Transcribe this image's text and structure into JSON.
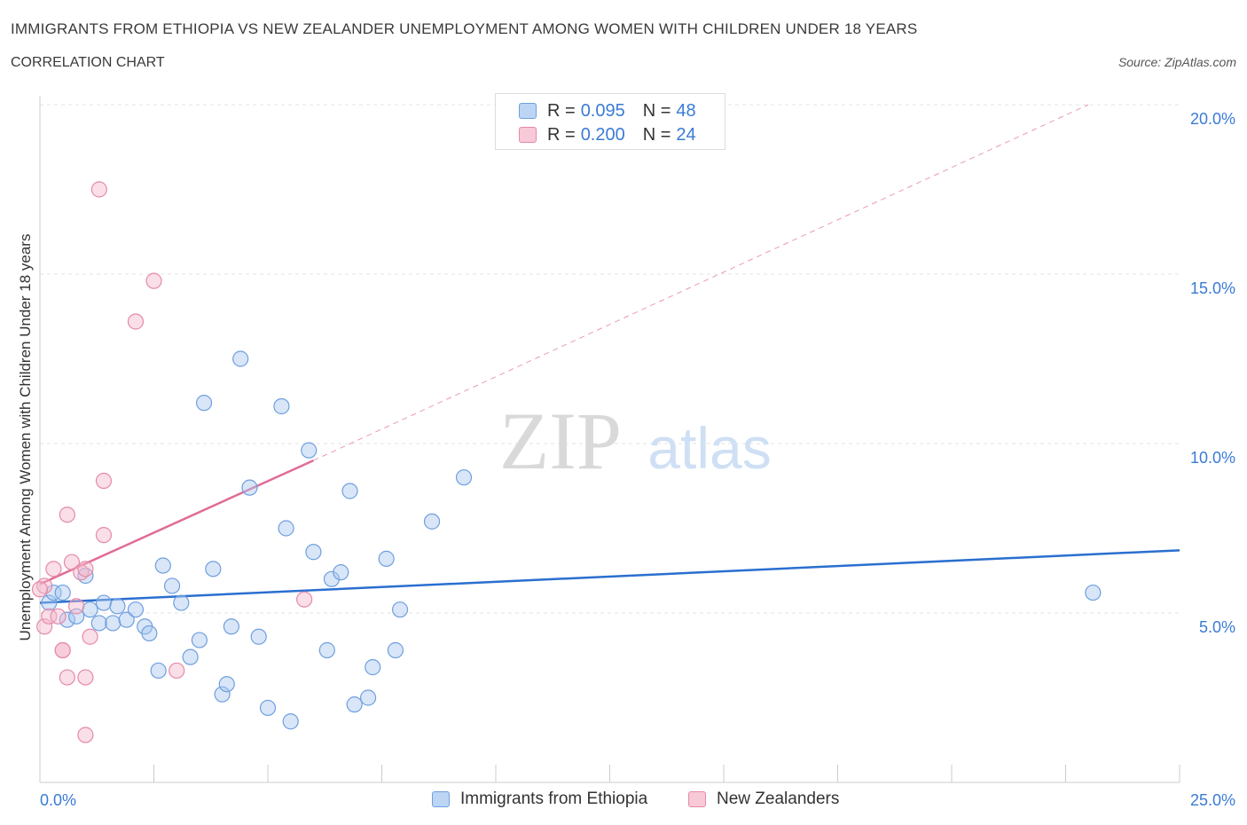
{
  "title": "IMMIGRANTS FROM ETHIOPIA VS NEW ZEALANDER UNEMPLOYMENT AMONG WOMEN WITH CHILDREN UNDER 18 YEARS",
  "subtitle": "CORRELATION CHART",
  "source": "Source: ZipAtlas.com",
  "watermark": {
    "zip": "ZIP",
    "atlas": "atlas"
  },
  "legend": {
    "series1": {
      "r_label": "R =",
      "r_value": "0.095",
      "n_label": "N =",
      "n_value": "48"
    },
    "series2": {
      "r_label": "R =",
      "r_value": "0.200",
      "n_label": "N =",
      "n_value": "24"
    }
  },
  "colors": {
    "blue_fill": "#a9c8f0",
    "blue_stroke": "#6f9fde",
    "blue_line": "#2a6fcf",
    "pink_fill": "#f5b8cb",
    "pink_stroke": "#e58aa8",
    "pink_line": "#e06c97",
    "axis_text": "#3a7bd5",
    "grid": "#e3e3e3"
  },
  "chart_data": {
    "type": "scatter",
    "xlabel": "",
    "ylabel": "Unemployment Among Women with Children Under 18 years",
    "xlim": [
      0,
      25
    ],
    "ylim": [
      0,
      20
    ],
    "x_tick_labels": [
      {
        "value": 0,
        "label": "0.0%"
      },
      {
        "value": 25,
        "label": "25.0%"
      }
    ],
    "y_tick_labels": [
      {
        "value": 5,
        "label": "5.0%"
      },
      {
        "value": 10,
        "label": "10.0%"
      },
      {
        "value": 15,
        "label": "15.0%"
      },
      {
        "value": 20,
        "label": "20.0%"
      }
    ],
    "grid": true,
    "legend_position": "bottom",
    "series": [
      {
        "name": "Immigrants from Ethiopia",
        "color": "#6f9fde",
        "points": [
          [
            0.2,
            5.3
          ],
          [
            0.3,
            5.6
          ],
          [
            0.5,
            5.6
          ],
          [
            0.6,
            4.8
          ],
          [
            0.8,
            4.9
          ],
          [
            1.0,
            6.1
          ],
          [
            1.1,
            5.1
          ],
          [
            1.3,
            4.7
          ],
          [
            1.4,
            5.3
          ],
          [
            1.6,
            4.7
          ],
          [
            1.7,
            5.2
          ],
          [
            1.9,
            4.8
          ],
          [
            2.1,
            5.1
          ],
          [
            2.3,
            4.6
          ],
          [
            2.4,
            4.4
          ],
          [
            2.6,
            3.3
          ],
          [
            2.7,
            6.4
          ],
          [
            2.9,
            5.8
          ],
          [
            3.1,
            5.3
          ],
          [
            3.3,
            3.7
          ],
          [
            3.5,
            4.2
          ],
          [
            3.6,
            11.2
          ],
          [
            3.8,
            6.3
          ],
          [
            4.0,
            2.6
          ],
          [
            4.1,
            2.9
          ],
          [
            4.2,
            4.6
          ],
          [
            4.4,
            12.5
          ],
          [
            4.6,
            8.7
          ],
          [
            4.8,
            4.3
          ],
          [
            5.0,
            2.2
          ],
          [
            5.3,
            11.1
          ],
          [
            5.4,
            7.5
          ],
          [
            5.5,
            1.8
          ],
          [
            5.9,
            9.8
          ],
          [
            6.0,
            6.8
          ],
          [
            6.3,
            3.9
          ],
          [
            6.4,
            6.0
          ],
          [
            6.6,
            6.2
          ],
          [
            6.8,
            8.6
          ],
          [
            6.9,
            2.3
          ],
          [
            7.2,
            2.5
          ],
          [
            7.3,
            3.4
          ],
          [
            7.6,
            6.6
          ],
          [
            7.8,
            3.9
          ],
          [
            7.9,
            5.1
          ],
          [
            8.6,
            7.7
          ],
          [
            9.3,
            9.0
          ],
          [
            23.1,
            5.6
          ]
        ]
      },
      {
        "name": "New Zealanders",
        "color": "#e58aa8",
        "points": [
          [
            0.1,
            5.8
          ],
          [
            0.1,
            4.6
          ],
          [
            0.2,
            4.9
          ],
          [
            0.3,
            6.3
          ],
          [
            0.4,
            4.9
          ],
          [
            0.5,
            3.9
          ],
          [
            0.5,
            3.9
          ],
          [
            0.6,
            7.9
          ],
          [
            0.6,
            3.1
          ],
          [
            0.7,
            6.5
          ],
          [
            0.8,
            5.2
          ],
          [
            0.9,
            6.2
          ],
          [
            1.0,
            6.3
          ],
          [
            1.0,
            3.1
          ],
          [
            1.0,
            1.4
          ],
          [
            1.1,
            4.3
          ],
          [
            1.3,
            17.5
          ],
          [
            1.4,
            7.3
          ],
          [
            1.4,
            8.9
          ],
          [
            2.1,
            13.6
          ],
          [
            2.5,
            14.8
          ],
          [
            3.0,
            3.3
          ],
          [
            5.8,
            5.4
          ],
          [
            0.0,
            5.7
          ]
        ]
      }
    ],
    "trend_lines": [
      {
        "series": "Immigrants from Ethiopia",
        "from": [
          0,
          5.3
        ],
        "to": [
          25,
          6.85
        ],
        "style": "solid"
      },
      {
        "series": "New Zealanders",
        "from": [
          0,
          5.85
        ],
        "to": [
          6.0,
          9.5
        ],
        "style": "solid"
      },
      {
        "series": "New Zealanders",
        "from": [
          6.0,
          9.5
        ],
        "to": [
          23.0,
          20.0
        ],
        "style": "dashed"
      }
    ]
  }
}
